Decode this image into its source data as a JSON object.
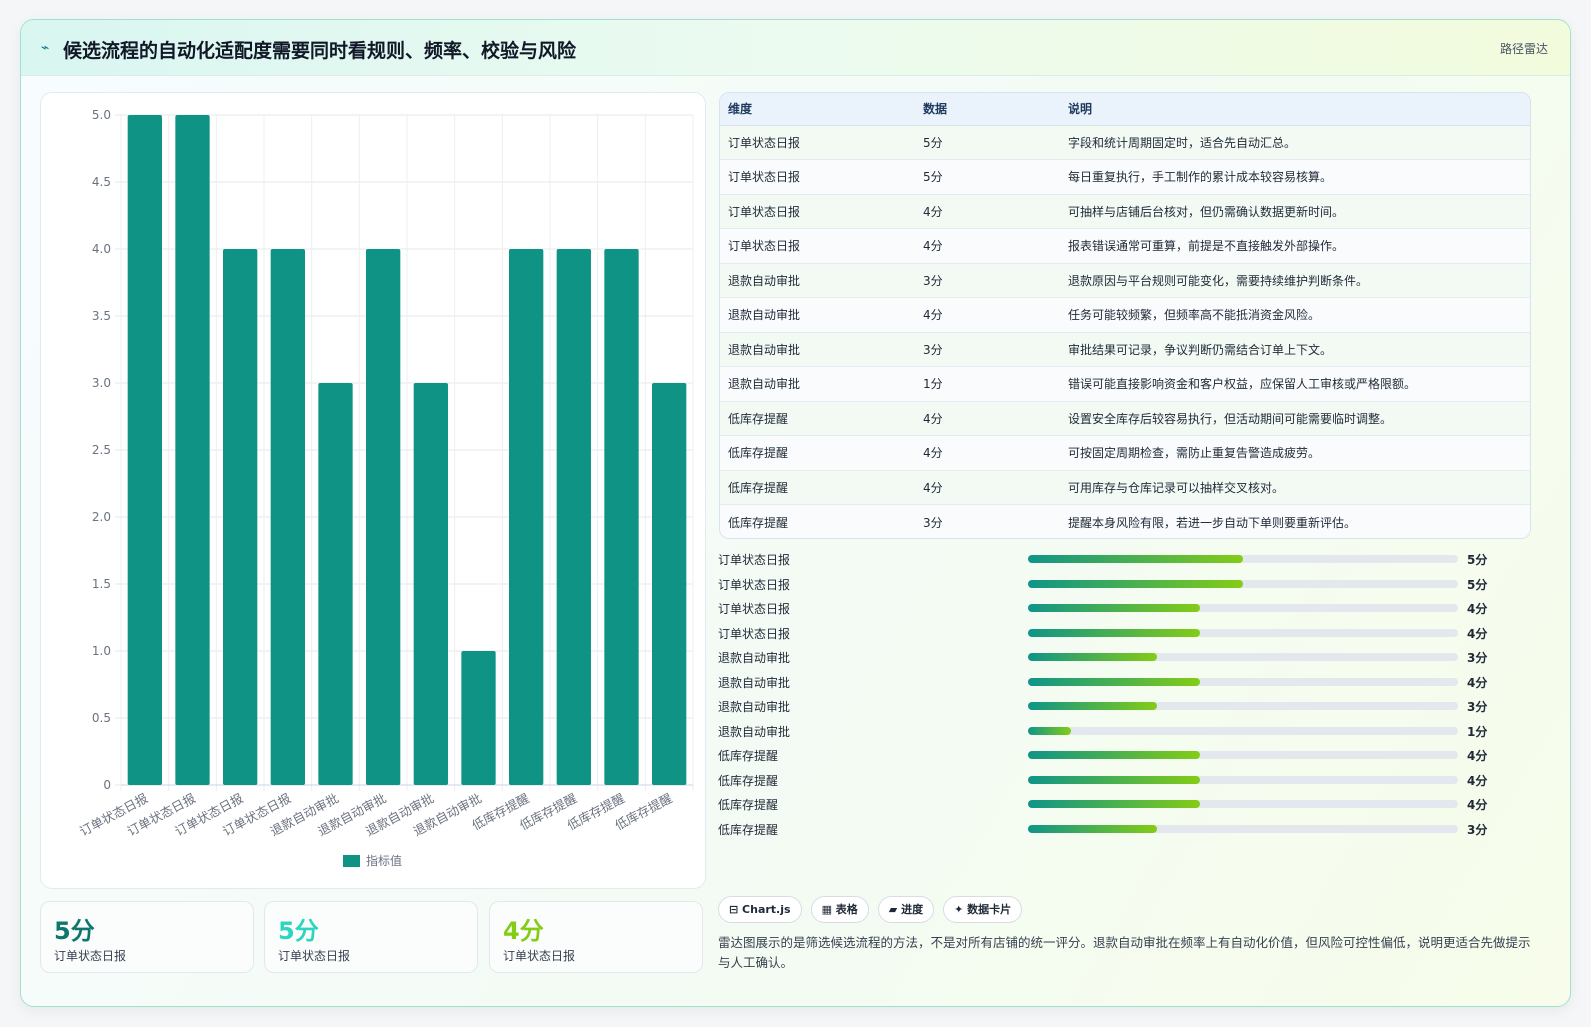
{
  "header": {
    "title": "候选流程的自动化适配度需要同时看规则、频率、校验与风险",
    "tag": "路径雷达"
  },
  "chart_data": {
    "type": "bar",
    "categories": [
      "订单状态日报",
      "订单状态日报",
      "订单状态日报",
      "订单状态日报",
      "退款自动审批",
      "退款自动审批",
      "退款自动审批",
      "退款自动审批",
      "低库存提醒",
      "低库存提醒",
      "低库存提醒",
      "低库存提醒"
    ],
    "series": [
      {
        "name": "指标值",
        "values": [
          5,
          5,
          4,
          4,
          3,
          4,
          3,
          1,
          4,
          4,
          4,
          3
        ],
        "color": "#0e9384"
      }
    ],
    "ylim": [
      0,
      5
    ],
    "yticks": [
      "0",
      "0.5",
      "1.0",
      "1.5",
      "2.0",
      "2.5",
      "3.0",
      "3.5",
      "4.0",
      "4.5",
      "5.0"
    ],
    "grid": true,
    "legend": "bottom"
  },
  "stats": [
    {
      "value": "5分",
      "label": "订单状态日报",
      "color": "#0f766e"
    },
    {
      "value": "5分",
      "label": "订单状态日报",
      "color": "#2dd4bf"
    },
    {
      "value": "4分",
      "label": "订单状态日报",
      "color": "#84cc16"
    }
  ],
  "table": {
    "headers": [
      "维度",
      "数据",
      "说明"
    ],
    "rows": [
      [
        "订单状态日报",
        "5分",
        "字段和统计周期固定时，适合先自动汇总。"
      ],
      [
        "订单状态日报",
        "5分",
        "每日重复执行，手工制作的累计成本较容易核算。"
      ],
      [
        "订单状态日报",
        "4分",
        "可抽样与店铺后台核对，但仍需确认数据更新时间。"
      ],
      [
        "订单状态日报",
        "4分",
        "报表错误通常可重算，前提是不直接触发外部操作。"
      ],
      [
        "退款自动审批",
        "3分",
        "退款原因与平台规则可能变化，需要持续维护判断条件。"
      ],
      [
        "退款自动审批",
        "4分",
        "任务可能较频繁，但频率高不能抵消资金风险。"
      ],
      [
        "退款自动审批",
        "3分",
        "审批结果可记录，争议判断仍需结合订单上下文。"
      ],
      [
        "退款自动审批",
        "1分",
        "错误可能直接影响资金和客户权益，应保留人工审核或严格限额。"
      ],
      [
        "低库存提醒",
        "4分",
        "设置安全库存后较容易执行，但活动期间可能需要临时调整。"
      ],
      [
        "低库存提醒",
        "4分",
        "可按固定周期检查，需防止重复告警造成疲劳。"
      ],
      [
        "低库存提醒",
        "4分",
        "可用库存与仓库记录可以抽样交叉核对。"
      ],
      [
        "低库存提醒",
        "3分",
        "提醒本身风险有限，若进一步自动下单则要重新评估。"
      ]
    ]
  },
  "progress": {
    "max": 10,
    "items": [
      {
        "label": "订单状态日报",
        "value": 5,
        "text": "5分"
      },
      {
        "label": "订单状态日报",
        "value": 5,
        "text": "5分"
      },
      {
        "label": "订单状态日报",
        "value": 4,
        "text": "4分"
      },
      {
        "label": "订单状态日报",
        "value": 4,
        "text": "4分"
      },
      {
        "label": "退款自动审批",
        "value": 3,
        "text": "3分"
      },
      {
        "label": "退款自动审批",
        "value": 4,
        "text": "4分"
      },
      {
        "label": "退款自动审批",
        "value": 3,
        "text": "3分"
      },
      {
        "label": "退款自动审批",
        "value": 1,
        "text": "1分"
      },
      {
        "label": "低库存提醒",
        "value": 4,
        "text": "4分"
      },
      {
        "label": "低库存提醒",
        "value": 4,
        "text": "4分"
      },
      {
        "label": "低库存提醒",
        "value": 4,
        "text": "4分"
      },
      {
        "label": "低库存提醒",
        "value": 3,
        "text": "3分"
      }
    ]
  },
  "chips": [
    "⊟ Chart.js",
    "▦ 表格",
    "▰ 进度",
    "✦ 数据卡片"
  ],
  "note": "雷达图展示的是筛选候选流程的方法，不是对所有店铺的统一评分。退款自动审批在频率上有自动化价值，但风险可控性偏低，说明更适合先做提示与人工确认。"
}
